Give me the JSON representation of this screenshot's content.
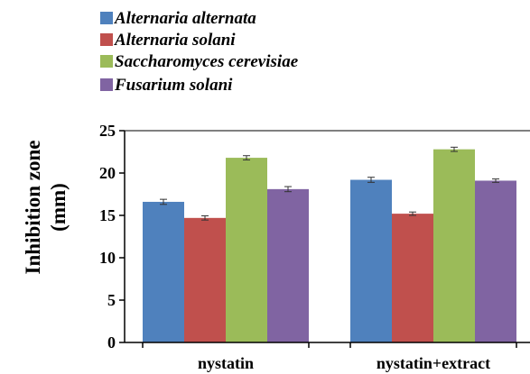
{
  "chart_data": {
    "type": "bar",
    "title": "",
    "xlabel": "",
    "ylabel": "Inhibition zone",
    "ylabel_unit": "(mm)",
    "categories": [
      "nystatin",
      "nystatin+extract"
    ],
    "series": [
      {
        "name": "Alternaria alternata",
        "color": "#4f81bd",
        "values": [
          16.6,
          19.2
        ],
        "errors": [
          0.3,
          0.3
        ]
      },
      {
        "name": "Alternaria solani",
        "color": "#c0504d",
        "values": [
          14.7,
          15.2
        ],
        "errors": [
          0.25,
          0.2
        ]
      },
      {
        "name": "Saccharomyces cerevisiae",
        "color": "#9bbb59",
        "values": [
          21.8,
          22.8
        ],
        "errors": [
          0.25,
          0.25
        ]
      },
      {
        "name": "Fusarium solani",
        "color": "#8064a2",
        "values": [
          18.1,
          19.1
        ],
        "errors": [
          0.3,
          0.2
        ]
      }
    ],
    "ylim": [
      0,
      25
    ],
    "yticks": [
      0,
      5,
      10,
      15,
      20,
      25
    ],
    "grid": false,
    "legend_position": "top-left",
    "error_bars": true
  }
}
